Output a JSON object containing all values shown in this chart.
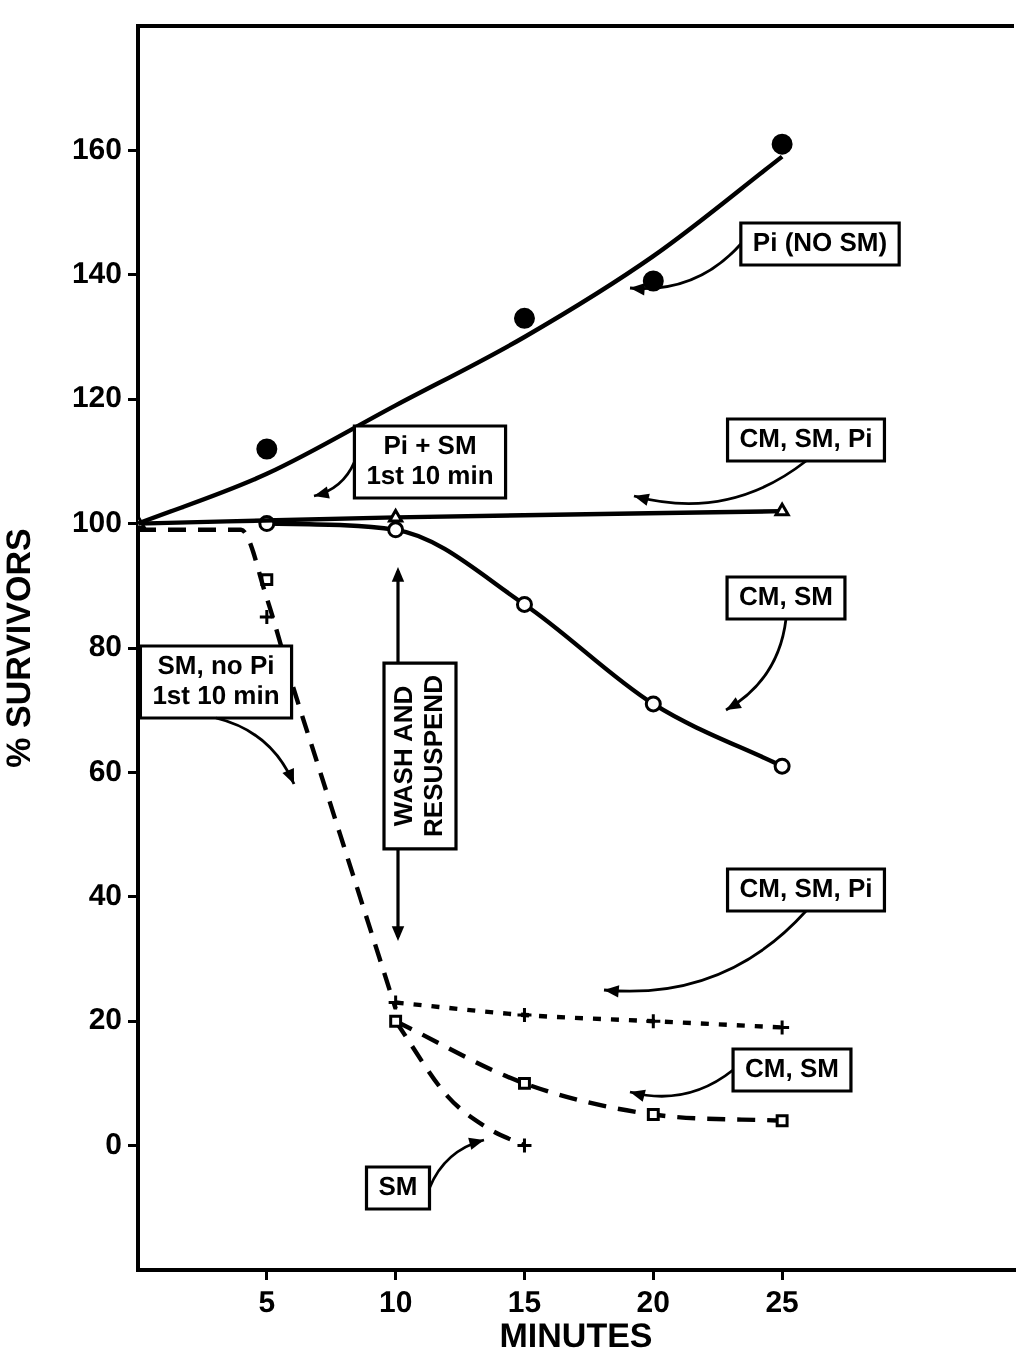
{
  "chart_data": {
    "type": "line",
    "xlabel": "MINUTES",
    "ylabel": "% SURVIVORS",
    "xlim": [
      0,
      34
    ],
    "ylim": [
      -20,
      180
    ],
    "xticks": [
      5,
      10,
      15,
      20,
      25
    ],
    "yticks": [
      0,
      20,
      40,
      60,
      80,
      100,
      120,
      140,
      160
    ],
    "grid": false,
    "legend": false,
    "series": [
      {
        "color": "#000000",
        "x": [
          0,
          5,
          10,
          15,
          20,
          25
        ],
        "values": [
          100,
          108,
          119,
          130,
          143,
          159
        ],
        "marker": "none",
        "line_style": "solid"
      },
      {
        "type": "scatter",
        "color": "#000000",
        "x": [
          5,
          15,
          20,
          25
        ],
        "values": [
          112,
          133,
          139,
          161
        ],
        "marker": "circle"
      },
      {
        "type": "line",
        "color": "#000000",
        "x": [
          0,
          10,
          25
        ],
        "values": [
          100,
          101,
          102
        ],
        "marker": "triangle",
        "line_style": "solid"
      },
      {
        "type": "line",
        "color": "#000000",
        "x": [
          5,
          10,
          15,
          20,
          25
        ],
        "values": [
          100,
          99,
          87,
          71,
          61
        ],
        "marker": "circle",
        "line_style": "solid"
      },
      {
        "type": "line",
        "color": "#000000",
        "x": [
          0,
          4,
          5,
          6,
          7,
          8,
          9,
          10
        ],
        "values": [
          99,
          99,
          88,
          74,
          61,
          48,
          35,
          22
        ],
        "marker": "none",
        "line_style": "dashed"
      },
      {
        "type": "scatter",
        "color": "#000000",
        "x": [
          5
        ],
        "values": [
          91
        ],
        "marker": "square"
      },
      {
        "type": "scatter",
        "color": "#000000",
        "x": [
          5,
          15
        ],
        "values": [
          85,
          0
        ],
        "marker": "cross"
      },
      {
        "type": "line",
        "color": "#000000",
        "x": [
          10,
          15,
          20,
          25
        ],
        "values": [
          23,
          21,
          20,
          19
        ],
        "marker": "cross",
        "line_style": "dotted"
      },
      {
        "type": "line",
        "color": "#000000",
        "x": [
          10,
          15,
          20,
          25
        ],
        "values": [
          20,
          10,
          5,
          4
        ],
        "marker": "square",
        "line_style": "dashed"
      },
      {
        "type": "line",
        "color": "#000000",
        "x": [
          10,
          12,
          13.5,
          15
        ],
        "values": [
          20,
          8,
          3,
          0
        ],
        "marker": "none",
        "line_style": "dashed"
      }
    ],
    "annotations": [
      "Pi (NO SM)",
      "Pi + SM\n1st 10 min",
      "CM, SM, Pi",
      "CM, SM",
      "SM, no Pi\n1st 10 min",
      "WASH AND\nRESUSPEND",
      "CM, SM, Pi",
      "CM, SM",
      "SM"
    ]
  }
}
